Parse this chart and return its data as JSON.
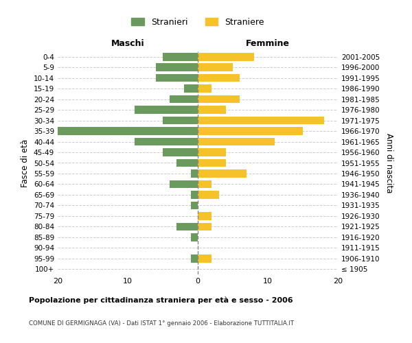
{
  "age_groups": [
    "100+",
    "95-99",
    "90-94",
    "85-89",
    "80-84",
    "75-79",
    "70-74",
    "65-69",
    "60-64",
    "55-59",
    "50-54",
    "45-49",
    "40-44",
    "35-39",
    "30-34",
    "25-29",
    "20-24",
    "15-19",
    "10-14",
    "5-9",
    "0-4"
  ],
  "birth_years": [
    "≤ 1905",
    "1906-1910",
    "1911-1915",
    "1916-1920",
    "1921-1925",
    "1926-1930",
    "1931-1935",
    "1936-1940",
    "1941-1945",
    "1946-1950",
    "1951-1955",
    "1956-1960",
    "1961-1965",
    "1966-1970",
    "1971-1975",
    "1976-1980",
    "1981-1985",
    "1986-1990",
    "1991-1995",
    "1996-2000",
    "2001-2005"
  ],
  "maschi": [
    0,
    1,
    0,
    1,
    3,
    0,
    1,
    1,
    4,
    1,
    3,
    5,
    9,
    20,
    5,
    9,
    4,
    2,
    6,
    6,
    5
  ],
  "femmine": [
    0,
    2,
    0,
    0,
    2,
    2,
    0,
    3,
    2,
    7,
    4,
    4,
    11,
    15,
    18,
    4,
    6,
    2,
    6,
    5,
    8
  ],
  "color_maschi": "#6b9a5e",
  "color_femmine": "#f5c22a",
  "title": "Popolazione per cittadinanza straniera per età e sesso - 2006",
  "subtitle": "COMUNE DI GERMIGNAGA (VA) - Dati ISTAT 1° gennaio 2006 - Elaborazione TUTTITALIA.IT",
  "xlabel_left": "Maschi",
  "xlabel_right": "Femmine",
  "ylabel_left": "Fasce di età",
  "ylabel_right": "Anni di nascita",
  "xlim": 20,
  "legend_stranieri": "Stranieri",
  "legend_straniere": "Straniere",
  "bg_color": "#ffffff",
  "grid_color": "#cccccc"
}
